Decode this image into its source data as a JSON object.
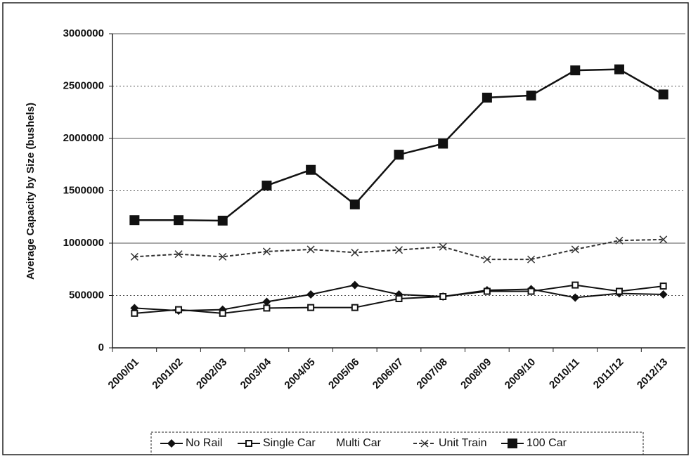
{
  "chart_data": {
    "type": "line",
    "y_label": "Average Capacity by Size (bushels)",
    "categories": [
      "2000/01",
      "2001/02",
      "2002/03",
      "2003/04",
      "2004/05",
      "2005/06",
      "2006/07",
      "2007/08",
      "2008/09",
      "2009/10",
      "2010/11",
      "2011/12",
      "2012/13"
    ],
    "series": [
      {
        "name": "No Rail",
        "color": "#111111",
        "marker": "diamond",
        "values": [
          380000,
          355000,
          365000,
          440000,
          510000,
          600000,
          510000,
          490000,
          550000,
          560000,
          480000,
          520000,
          510000
        ]
      },
      {
        "name": "Single Car",
        "color": "#111111",
        "marker": "square",
        "values": [
          330000,
          365000,
          330000,
          380000,
          385000,
          385000,
          470000,
          490000,
          540000,
          540000,
          600000,
          540000,
          590000
        ]
      },
      {
        "name": "Multi Car",
        "color": "#111111",
        "marker": "none",
        "values": [
          null,
          null,
          null,
          null,
          null,
          null,
          null,
          null,
          null,
          null,
          null,
          null,
          null
        ]
      },
      {
        "name": "Unit Train",
        "color": "#333333",
        "marker": "x",
        "dash": true,
        "values": [
          870000,
          895000,
          870000,
          920000,
          940000,
          910000,
          935000,
          965000,
          845000,
          845000,
          940000,
          1025000,
          1035000
        ]
      },
      {
        "name": "100 Car",
        "color": "#111111",
        "marker": "bigsquare",
        "values": [
          1220000,
          1220000,
          1215000,
          1550000,
          1700000,
          1370000,
          1845000,
          1950000,
          2390000,
          2410000,
          2650000,
          2660000,
          2420000
        ]
      }
    ],
    "ylim": [
      0,
      3000000
    ],
    "yticks": [
      0,
      500000,
      1000000,
      1500000,
      2000000,
      2500000,
      3000000
    ],
    "grid": true,
    "legend": "bottom"
  }
}
